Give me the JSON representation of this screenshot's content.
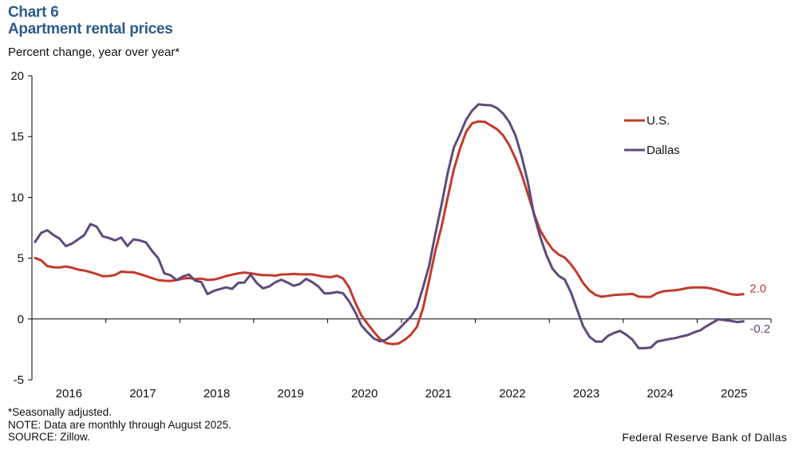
{
  "header": {
    "chart_number": "Chart 6",
    "title": "Apartment rental prices",
    "subtitle": "Percent change, year over year*"
  },
  "footer": {
    "notes": [
      "*Seasonally adjusted.",
      "NOTE: Data are monthly through August 2025.",
      "SOURCE: Zillow."
    ],
    "credit": "Federal Reserve Bank of Dallas"
  },
  "chart_data": {
    "type": "line",
    "title": "Apartment rental prices",
    "ylabel": "Percent change, year over year*",
    "xlabel": "",
    "ylim": [
      -5,
      20
    ],
    "yticks": [
      -5,
      0,
      5,
      10,
      15,
      20
    ],
    "ytick_labels": [
      "-5",
      "0",
      "5",
      "10",
      "15",
      "20"
    ],
    "x_range": [
      "Jan 2016",
      "Aug 2025"
    ],
    "x_start_year": 2016,
    "x_end_year": 2026,
    "xtick_labels": [
      "2016",
      "2017",
      "2018",
      "2019",
      "2020",
      "2021",
      "2022",
      "2023",
      "2024",
      "2025"
    ],
    "frequency": "monthly",
    "grid": false,
    "legend_position": "top-right",
    "series": [
      {
        "name": "U.S.",
        "color": "#c23b2c",
        "end_label": "2.0",
        "values": [
          5.02,
          4.82,
          4.35,
          4.25,
          4.24,
          4.32,
          4.22,
          4.06,
          3.98,
          3.85,
          3.7,
          3.52,
          3.54,
          3.62,
          3.9,
          3.85,
          3.84,
          3.7,
          3.54,
          3.36,
          3.2,
          3.14,
          3.13,
          3.2,
          3.32,
          3.37,
          3.28,
          3.32,
          3.21,
          3.24,
          3.36,
          3.53,
          3.64,
          3.75,
          3.82,
          3.76,
          3.67,
          3.6,
          3.6,
          3.56,
          3.66,
          3.67,
          3.71,
          3.67,
          3.67,
          3.67,
          3.57,
          3.48,
          3.43,
          3.56,
          3.34,
          2.6,
          1.35,
          0.28,
          -0.4,
          -1.05,
          -1.65,
          -1.98,
          -2.06,
          -2.02,
          -1.72,
          -1.3,
          -0.65,
          0.9,
          3.2,
          5.6,
          7.6,
          10.0,
          12.3,
          14.0,
          15.4,
          16.1,
          16.25,
          16.22,
          15.92,
          15.62,
          15.1,
          14.3,
          13.2,
          11.9,
          10.3,
          8.7,
          7.3,
          6.45,
          5.75,
          5.3,
          5.05,
          4.5,
          3.8,
          2.95,
          2.35,
          1.98,
          1.83,
          1.9,
          1.97,
          2.01,
          2.03,
          2.07,
          1.84,
          1.82,
          1.82,
          2.12,
          2.28,
          2.32,
          2.36,
          2.45,
          2.55,
          2.6,
          2.6,
          2.58,
          2.48,
          2.35,
          2.19,
          2.04,
          1.99,
          2.05
        ]
      },
      {
        "name": "Dallas",
        "color": "#5f4a7d",
        "end_label": "-0.2",
        "values": [
          6.34,
          7.08,
          7.3,
          6.9,
          6.6,
          6.0,
          6.2,
          6.55,
          6.9,
          7.8,
          7.6,
          6.8,
          6.66,
          6.46,
          6.7,
          6.0,
          6.55,
          6.46,
          6.3,
          5.6,
          5.0,
          3.75,
          3.6,
          3.2,
          3.5,
          3.66,
          3.15,
          3.04,
          2.05,
          2.3,
          2.46,
          2.6,
          2.48,
          2.98,
          3.0,
          3.65,
          2.96,
          2.52,
          2.67,
          3.02,
          3.23,
          3.0,
          2.73,
          2.88,
          3.3,
          3.04,
          2.68,
          2.1,
          2.12,
          2.22,
          2.12,
          1.45,
          0.55,
          -0.53,
          -1.1,
          -1.6,
          -1.84,
          -1.7,
          -1.33,
          -0.86,
          -0.33,
          0.18,
          0.95,
          2.6,
          4.4,
          7.0,
          9.4,
          12.0,
          14.1,
          15.2,
          16.4,
          17.16,
          17.65,
          17.6,
          17.57,
          17.35,
          16.9,
          16.2,
          15.1,
          13.4,
          11.3,
          8.6,
          6.8,
          5.3,
          4.15,
          3.55,
          3.25,
          2.2,
          0.8,
          -0.6,
          -1.45,
          -1.85,
          -1.87,
          -1.4,
          -1.15,
          -0.98,
          -1.3,
          -1.7,
          -2.4,
          -2.4,
          -2.34,
          -1.86,
          -1.75,
          -1.65,
          -1.57,
          -1.43,
          -1.32,
          -1.1,
          -0.93,
          -0.6,
          -0.3,
          -0.02,
          -0.1,
          -0.16,
          -0.25,
          -0.2
        ]
      }
    ]
  }
}
